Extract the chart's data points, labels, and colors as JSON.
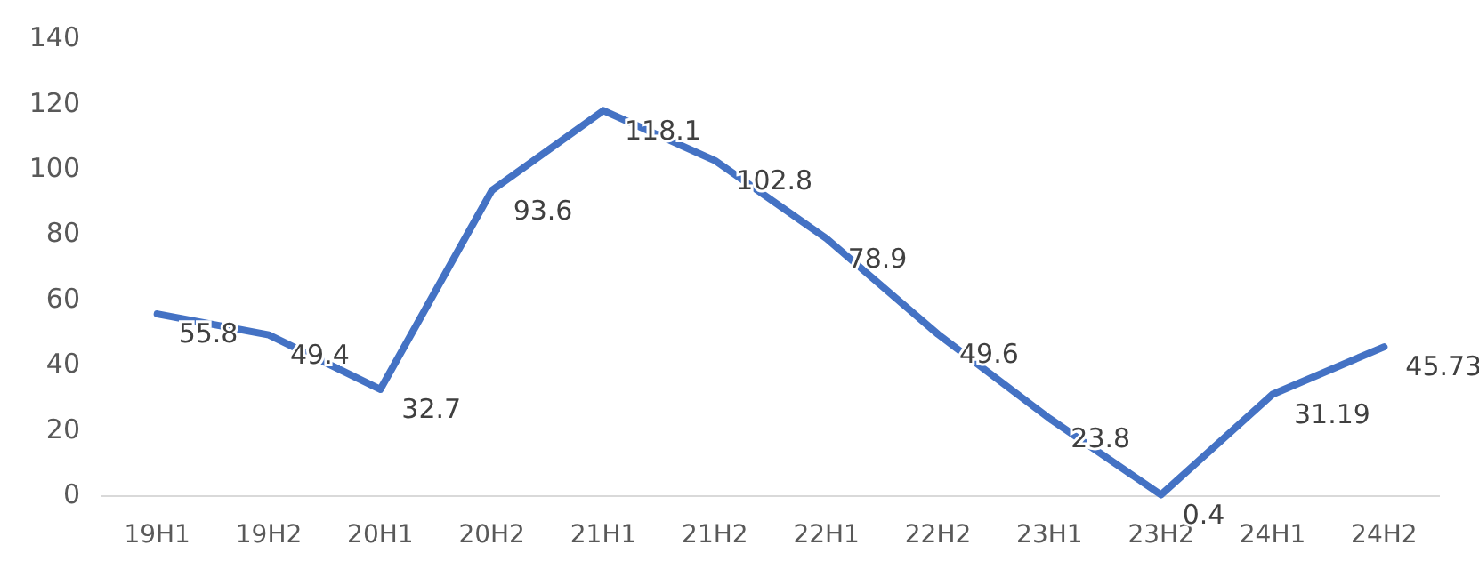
{
  "chart_data": {
    "type": "line",
    "categories": [
      "19H1",
      "19H2",
      "20H1",
      "20H2",
      "21H1",
      "21H2",
      "22H1",
      "22H2",
      "23H1",
      "23H2",
      "24H1",
      "24H2"
    ],
    "series": [
      {
        "color": "#4472c4",
        "values": [
          55.8,
          49.4,
          32.7,
          93.6,
          118.1,
          102.8,
          78.9,
          49.6,
          23.8,
          0.4,
          31.19,
          45.73
        ]
      }
    ],
    "ylim": [
      0,
      140
    ],
    "yticks": [
      0,
      20,
      40,
      60,
      80,
      100,
      120,
      140
    ],
    "grid": false,
    "marker": "none",
    "line_style": "solid",
    "data_labels": true
  }
}
